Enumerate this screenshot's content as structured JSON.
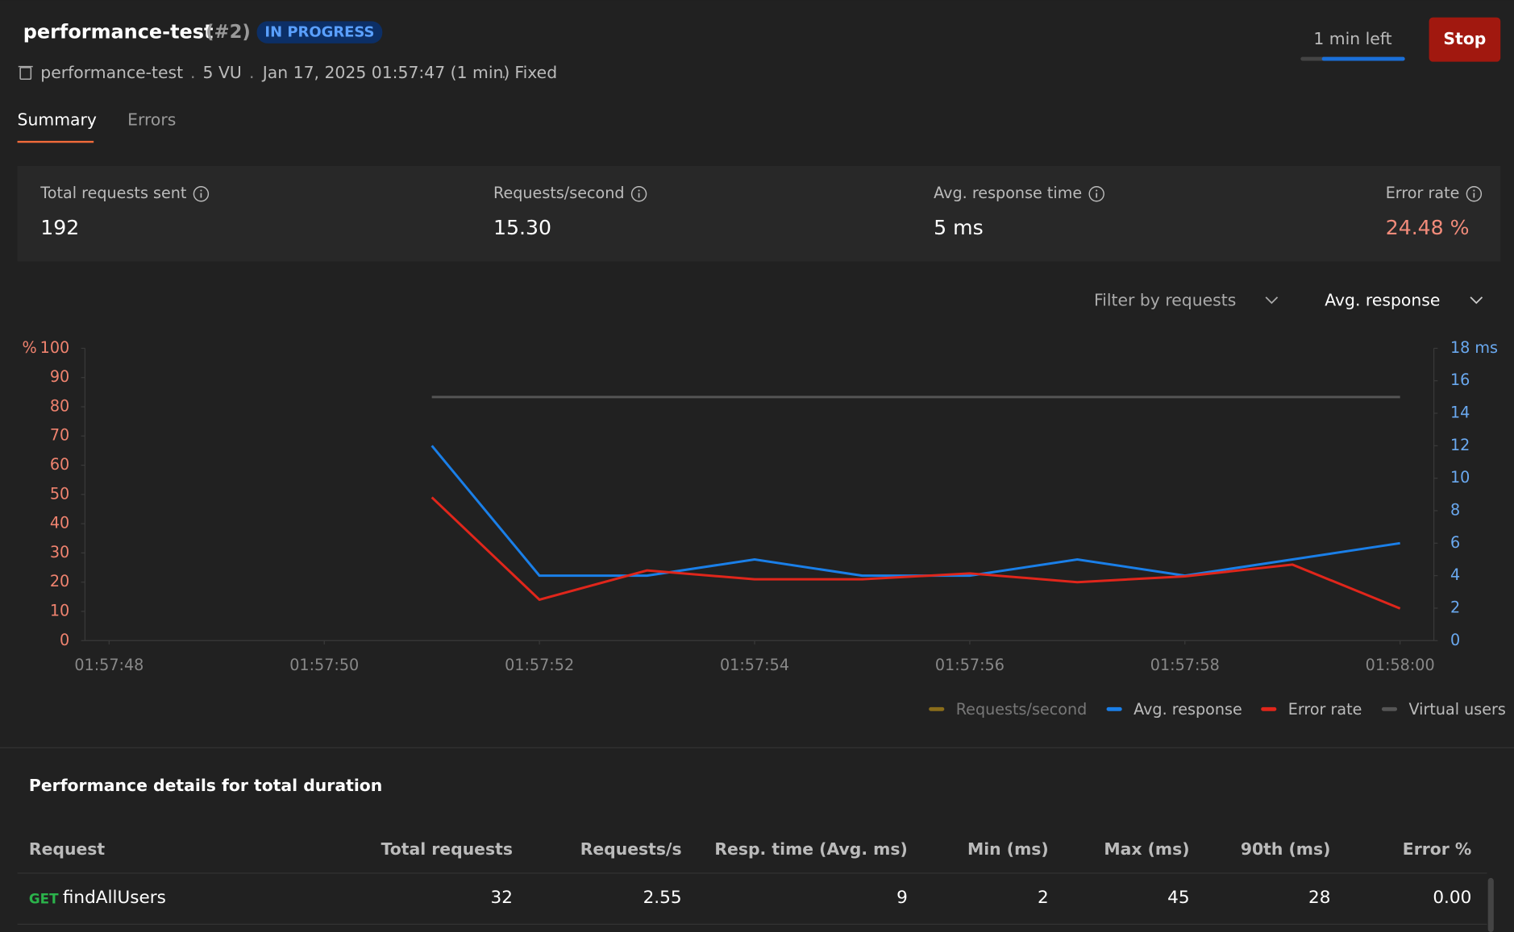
{
  "header": {
    "title": "performance-test",
    "run": "(#2)",
    "status": "IN PROGRESS",
    "collection": "performance-test",
    "meta": [
      "5 VU",
      "Jan 17, 2025 01:57:47 (1 min)",
      "Fixed"
    ],
    "time_left": "1 min left",
    "stop": "Stop"
  },
  "tabs": [
    "Summary",
    "Errors"
  ],
  "stats": [
    {
      "label": "Total requests sent",
      "value": "192"
    },
    {
      "label": "Requests/second",
      "value": "15.30"
    },
    {
      "label": "Avg. response time",
      "value": "5 ms"
    },
    {
      "label": "Error rate",
      "value": "24.48 %"
    }
  ],
  "filters": [
    "Filter by requests",
    "Avg. response"
  ],
  "chart_data": {
    "type": "line",
    "x": [
      "01:57:51",
      "01:57:52",
      "01:57:53",
      "01:57:54",
      "01:57:55",
      "01:57:56",
      "01:57:57",
      "01:57:58",
      "01:57:59",
      "01:58:00"
    ],
    "xlim": [
      "01:57:48",
      "01:58:00"
    ],
    "xticks": [
      "01:57:48",
      "01:57:50",
      "01:57:52",
      "01:57:54",
      "01:57:56",
      "01:57:58",
      "01:58:00"
    ],
    "y_label": "%",
    "ylim": [
      0,
      100
    ],
    "yticks": [
      0,
      10,
      20,
      30,
      40,
      50,
      60,
      70,
      80,
      90,
      100
    ],
    "y2_label": "ms",
    "y2lim": [
      0,
      18
    ],
    "y2ticks": [
      0,
      2,
      4,
      6,
      8,
      10,
      12,
      14,
      16,
      18
    ],
    "series": [
      {
        "name": "Requests/second",
        "color": "#8a6d1a",
        "visible": false
      },
      {
        "name": "Avg. response",
        "color": "#1a7fe8",
        "axis": "y2",
        "values": [
          12,
          4,
          4,
          5,
          4,
          4,
          5,
          4,
          5,
          6
        ]
      },
      {
        "name": "Error rate",
        "color": "#e0261b",
        "values": [
          49,
          14,
          24,
          21,
          21,
          23,
          20,
          22,
          26,
          11
        ]
      },
      {
        "name": "Virtual users",
        "color": "#555555",
        "axis": "y2",
        "values": [
          15,
          15,
          15,
          15,
          15,
          15,
          15,
          15,
          15,
          15
        ]
      }
    ]
  },
  "details": {
    "title": "Performance details for total duration",
    "columns": [
      "Request",
      "Total requests",
      "Requests/s",
      "Resp. time (Avg. ms)",
      "Min (ms)",
      "Max (ms)",
      "90th (ms)",
      "Error %"
    ],
    "rows": [
      {
        "method": "GET",
        "name": "findAllUsers",
        "cells": [
          "32",
          "2.55",
          "9",
          "2",
          "45",
          "28",
          "0.00"
        ]
      }
    ]
  }
}
